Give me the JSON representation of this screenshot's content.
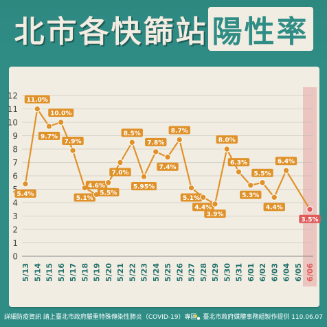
{
  "title": {
    "main": "北市各快篩站",
    "accent": "陽性率"
  },
  "footer": {
    "left": "詳細防疫資訊 請上臺北市政府嚴重特殊傳染性肺炎（COVID-19）專區",
    "right": "臺北市政府媒體事務組製作提供 110.06.07"
  },
  "colors": {
    "background": "#2f8d86",
    "panel": "#f2ede2",
    "line": "#e0922a",
    "highlight": "#e05a5a",
    "highlight_band": "#e8b7b3"
  },
  "chart_data": {
    "type": "line",
    "title": "",
    "xlabel": "",
    "ylabel": "",
    "ylim": [
      0,
      12
    ],
    "yticks": [
      "0",
      "1",
      "2",
      "3",
      "4",
      "5",
      "6",
      "7",
      "8",
      "9",
      "10",
      "11",
      "12"
    ],
    "grid": true,
    "categories": [
      "5/13",
      "5/14",
      "5/15",
      "5/16",
      "5/17",
      "5/18",
      "5/19",
      "5/20",
      "5/21",
      "5/22",
      "5/23",
      "5/24",
      "5/25",
      "5/26",
      "5/27",
      "5/28",
      "5/29",
      "5/30",
      "5/31",
      "6/01",
      "6/02",
      "6/03",
      "6/04",
      "6/05",
      "6/06"
    ],
    "values": [
      5.4,
      11.0,
      9.7,
      10.0,
      7.9,
      5.1,
      4.6,
      5.5,
      7.0,
      8.5,
      5.95,
      7.8,
      7.4,
      8.7,
      5.1,
      4.4,
      3.9,
      8.0,
      6.3,
      5.3,
      5.5,
      4.4,
      6.4,
      null,
      3.5
    ],
    "data_labels": [
      "5.4%",
      "11.0%",
      "9.7%",
      "10.0%",
      "7.9%",
      "5.1%",
      "4.6%",
      "5.5%",
      "7.0%",
      "8.5%",
      "5.95%",
      "7.8%",
      "7.4%",
      "8.7%",
      "5.1%",
      "4.4%",
      "3.9%",
      "8.0%",
      "6.3%",
      "5.3%",
      "5.5%",
      "4.4%",
      "6.4%",
      "",
      "3.5%"
    ],
    "label_position": [
      "below",
      "above",
      "below",
      "above",
      "above",
      "below",
      "above",
      "below",
      "below",
      "above",
      "below",
      "above",
      "below",
      "above",
      "below",
      "below",
      "below",
      "above",
      "above",
      "below",
      "above",
      "below",
      "above",
      "",
      "below"
    ],
    "highlight_category": "6/06"
  }
}
